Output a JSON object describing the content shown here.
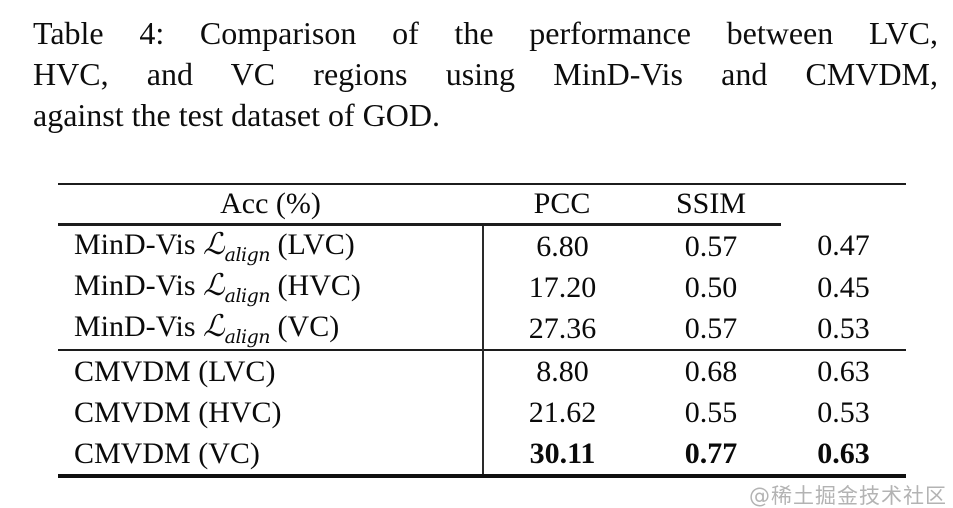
{
  "caption": {
    "lines": [
      "Table 4: Comparison of the performance between LVC,",
      "HVC, and VC regions using MinD-Vis and CMVDM,",
      "against the test dataset of GOD."
    ]
  },
  "table": {
    "headers": {
      "label": "",
      "acc": "Acc (%)",
      "pcc": "PCC",
      "ssim": "SSIM"
    },
    "rows": [
      {
        "method": "MinD-Vis",
        "math_symbol": "ℒ",
        "math_sub": "align",
        "region": "(LVC)",
        "acc": "6.80",
        "pcc": "0.57",
        "ssim": "0.47"
      },
      {
        "method": "MinD-Vis",
        "math_symbol": "ℒ",
        "math_sub": "align",
        "region": "(HVC)",
        "acc": "17.20",
        "pcc": "0.50",
        "ssim": "0.45"
      },
      {
        "method": "MinD-Vis",
        "math_symbol": "ℒ",
        "math_sub": "align",
        "region": "(VC)",
        "acc": "27.36",
        "pcc": "0.57",
        "ssim": "0.53"
      },
      {
        "method": "CMVDM",
        "math_symbol": "",
        "math_sub": "",
        "region": "(LVC)",
        "acc": "8.80",
        "pcc": "0.68",
        "ssim": "0.63"
      },
      {
        "method": "CMVDM",
        "math_symbol": "",
        "math_sub": "",
        "region": "(HVC)",
        "acc": "21.62",
        "pcc": "0.55",
        "ssim": "0.53"
      },
      {
        "method": "CMVDM",
        "math_symbol": "",
        "math_sub": "",
        "region": "(VC)",
        "acc": "30.11",
        "pcc": "0.77",
        "ssim": "0.63"
      }
    ]
  },
  "watermark": {
    "text": "@稀土掘金技术社区",
    "color": "#b3b3b3"
  },
  "colors": {
    "text": "#0a0a0a",
    "rule": "#1c1c1c",
    "background": "#ffffff"
  }
}
